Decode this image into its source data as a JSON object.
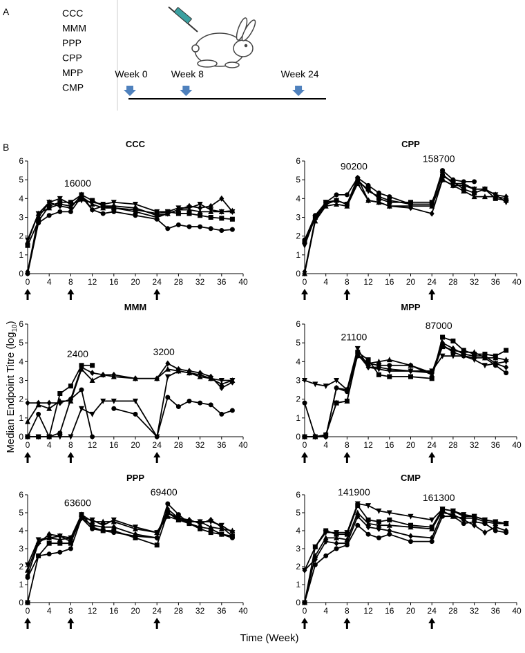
{
  "panel_labels": [
    "A",
    "B"
  ],
  "schedule": {
    "groups": [
      "CCC",
      "MMM",
      "PPP",
      "CPP",
      "MPP",
      "CMP"
    ],
    "weeks": [
      {
        "label": "Week 0",
        "week": 0
      },
      {
        "label": "Week 8",
        "week": 8
      },
      {
        "label": "Week 24",
        "week": 24
      }
    ],
    "arrow_color": "#4f81bd"
  },
  "axis_labels": {
    "y": [
      "Median Endpoint Titre (log",
      "10",
      ")"
    ],
    "x": "Time (Week)"
  },
  "chart_data": [
    {
      "type": "line",
      "title": "CCC",
      "x": [
        0,
        2,
        4,
        6,
        8,
        10,
        12,
        14,
        16,
        20,
        24,
        26,
        28,
        30,
        32,
        34,
        36,
        38
      ],
      "series": [
        {
          "marker": "circle",
          "color": "#000",
          "values": [
            0,
            2.7,
            3.1,
            3.3,
            3.3,
            4.1,
            3.4,
            3.2,
            3.3,
            3.1,
            2.9,
            2.4,
            2.6,
            2.5,
            2.5,
            2.4,
            2.3,
            2.35
          ]
        },
        {
          "marker": "square",
          "color": "#000",
          "values": [
            1.5,
            2.8,
            3.6,
            3.8,
            3.8,
            4.2,
            3.9,
            3.6,
            3.5,
            3.4,
            3.2,
            3.3,
            3.2,
            3.2,
            3.1,
            3.0,
            2.95,
            2.9
          ]
        },
        {
          "marker": "triangle-up",
          "color": "#000",
          "values": [
            1.7,
            3.2,
            3.5,
            3.7,
            3.6,
            4.1,
            3.7,
            3.5,
            3.5,
            3.3,
            3.0,
            3.2,
            3.4,
            3.4,
            3.3,
            3.3,
            3.3,
            3.35
          ]
        },
        {
          "marker": "triangle-down",
          "color": "#000",
          "values": [
            1.8,
            3.2,
            3.8,
            4.0,
            3.7,
            3.9,
            3.8,
            3.7,
            3.8,
            3.7,
            3.3,
            3.3,
            3.5,
            3.5,
            3.7,
            3.4,
            3.3,
            3.3
          ]
        },
        {
          "marker": "diamond",
          "color": "#000",
          "values": [
            0.1,
            3.0,
            3.8,
            3.6,
            3.5,
            4.2,
            3.4,
            3.6,
            3.6,
            3.5,
            3.1,
            3.2,
            3.4,
            3.6,
            3.5,
            3.6,
            4.0,
            3.3
          ]
        }
      ],
      "annotations": [
        {
          "text": "16000",
          "x": 8
        }
      ],
      "dose_weeks": [
        0,
        8,
        24
      ],
      "xlim": [
        0,
        40
      ],
      "xticks": [
        0,
        4,
        8,
        12,
        16,
        20,
        24,
        28,
        32,
        36,
        40
      ],
      "ylim": [
        0,
        6
      ],
      "yticks": [
        0,
        1,
        2,
        3,
        4,
        5,
        6
      ]
    },
    {
      "type": "line",
      "title": "CPP",
      "x": [
        0,
        2,
        4,
        6,
        8,
        10,
        12,
        14,
        16,
        20,
        24,
        26,
        28,
        30,
        32,
        34,
        36,
        38
      ],
      "series": [
        {
          "marker": "circle",
          "color": "#000",
          "values": [
            1.8,
            3.1,
            3.8,
            4.2,
            4.2,
            5.1,
            4.7,
            4.3,
            4.1,
            3.7,
            3.7,
            5.5,
            5.0,
            4.9,
            4.9,
            null,
            null,
            null
          ]
        },
        {
          "marker": "square",
          "color": "#000",
          "values": [
            1.7,
            3.0,
            3.8,
            3.9,
            3.7,
            4.9,
            4.5,
            4.0,
            3.8,
            3.8,
            3.8,
            5.2,
            4.9,
            4.5,
            4.3,
            4.5,
            4.0,
            3.9
          ]
        },
        {
          "marker": "triangle-up",
          "color": "#000",
          "values": [
            0,
            2.8,
            3.6,
            3.7,
            3.6,
            4.8,
            3.9,
            3.8,
            3.6,
            3.6,
            3.6,
            5.0,
            4.7,
            4.4,
            4.1,
            4.1,
            4.1,
            4.0
          ]
        },
        {
          "marker": "triangle-down",
          "color": "#000",
          "values": [
            1.5,
            3.0,
            3.8,
            3.9,
            3.7,
            5.0,
            4.4,
            4.1,
            3.9,
            3.7,
            3.7,
            5.3,
            4.8,
            4.8,
            4.5,
            4.5,
            4.2,
            3.8
          ]
        },
        {
          "marker": "diamond",
          "color": "#000",
          "values": [
            0.1,
            2.9,
            3.7,
            3.9,
            3.7,
            5.1,
            3.9,
            3.8,
            3.6,
            3.5,
            3.2,
            5.0,
            4.7,
            4.7,
            4.5,
            4.5,
            4.2,
            4.1
          ]
        }
      ],
      "annotations": [
        {
          "text": "90200",
          "x": 8
        },
        {
          "text": "158700",
          "x": 24
        }
      ],
      "dose_weeks": [
        0,
        8,
        24
      ],
      "xlim": [
        0,
        40
      ],
      "xticks": [
        0,
        4,
        8,
        12,
        16,
        20,
        24,
        28,
        32,
        36,
        40
      ],
      "ylim": [
        0,
        6
      ],
      "yticks": [
        0,
        1,
        2,
        3,
        4,
        5,
        6
      ]
    },
    {
      "type": "line",
      "title": "MMM",
      "x": [
        0,
        2,
        4,
        6,
        8,
        10,
        12,
        14,
        16,
        20,
        24,
        26,
        28,
        30,
        32,
        34,
        36,
        38
      ],
      "series": [
        {
          "marker": "circle",
          "color": "#000",
          "values": [
            0,
            1.2,
            0,
            0.2,
            2.0,
            2.5,
            0,
            null,
            1.5,
            1.2,
            0,
            2.1,
            1.6,
            1.9,
            1.8,
            1.7,
            1.2,
            1.4
          ]
        },
        {
          "marker": "square",
          "color": "#000",
          "values": [
            0,
            0,
            0,
            2.3,
            2.7,
            3.8,
            3.8,
            null,
            null,
            null,
            null,
            null,
            null,
            null,
            null,
            null,
            null,
            null
          ]
        },
        {
          "marker": "triangle-up",
          "color": "#000",
          "values": [
            0.8,
            1.7,
            1.5,
            1.9,
            1.9,
            3.6,
            3.0,
            3.3,
            3.2,
            3.1,
            3.1,
            3.6,
            3.5,
            3.4,
            3.2,
            3.1,
            2.8,
            3.0
          ]
        },
        {
          "marker": "triangle-down",
          "color": "#000",
          "values": [
            0,
            0,
            0,
            0,
            0,
            1.5,
            1.2,
            1.9,
            1.9,
            1.9,
            0,
            3.2,
            3.5,
            3.4,
            3.3,
            3.1,
            3.0,
            3.0
          ]
        },
        {
          "marker": "diamond",
          "color": "#000",
          "values": [
            1.8,
            1.8,
            1.8,
            1.8,
            2.0,
            3.7,
            3.4,
            3.3,
            3.3,
            3.1,
            3.1,
            3.9,
            3.6,
            3.5,
            3.4,
            3.2,
            2.6,
            2.9
          ]
        }
      ],
      "annotations": [
        {
          "text": "2400",
          "x": 8
        },
        {
          "text": "3200",
          "x": 24
        }
      ],
      "dose_weeks": [
        0,
        8,
        24
      ],
      "xlim": [
        0,
        40
      ],
      "xticks": [
        0,
        4,
        8,
        12,
        16,
        20,
        24,
        28,
        32,
        36,
        40
      ],
      "ylim": [
        0,
        6
      ],
      "yticks": [
        0,
        1,
        2,
        3,
        4,
        5,
        6
      ]
    },
    {
      "type": "line",
      "title": "MPP",
      "x": [
        0,
        2,
        4,
        6,
        8,
        10,
        12,
        14,
        16,
        20,
        24,
        26,
        28,
        30,
        32,
        34,
        36,
        38
      ],
      "series": [
        {
          "marker": "circle",
          "color": "#000",
          "values": [
            1.8,
            0,
            0,
            2.6,
            2.4,
            4.3,
            3.9,
            3.8,
            3.8,
            3.8,
            3.4,
            4.9,
            4.5,
            4.3,
            4.2,
            4.2,
            3.8,
            3.4
          ]
        },
        {
          "marker": "square",
          "color": "#000",
          "values": [
            0,
            0,
            0.1,
            1.8,
            1.9,
            4.5,
            4.1,
            3.3,
            3.2,
            3.2,
            3.1,
            5.3,
            5.1,
            4.6,
            4.4,
            4.4,
            4.3,
            4.6
          ]
        },
        {
          "marker": "triangle-up",
          "color": "#000",
          "values": [
            0,
            0,
            0.1,
            1.8,
            1.9,
            4.4,
            3.9,
            4.0,
            4.1,
            3.8,
            3.3,
            4.8,
            4.6,
            4.5,
            4.5,
            4.2,
            4.2,
            4.1
          ]
        },
        {
          "marker": "triangle-down",
          "color": "#000",
          "values": [
            3.0,
            2.8,
            2.7,
            3.0,
            2.5,
            4.7,
            3.7,
            3.6,
            3.5,
            3.5,
            3.5,
            4.3,
            4.3,
            4.3,
            4.1,
            3.8,
            3.9,
            4.0
          ]
        },
        {
          "marker": "diamond",
          "color": "#000",
          "values": [
            0,
            0,
            0,
            2.6,
            2.5,
            4.4,
            3.7,
            3.7,
            3.6,
            3.5,
            3.4,
            5.0,
            4.7,
            4.4,
            4.3,
            4.3,
            3.9,
            3.7
          ]
        }
      ],
      "annotations": [
        {
          "text": "21100",
          "x": 8
        },
        {
          "text": "87000",
          "x": 24
        }
      ],
      "dose_weeks": [
        0,
        8,
        24
      ],
      "xlim": [
        0,
        40
      ],
      "xticks": [
        0,
        4,
        8,
        12,
        16,
        20,
        24,
        28,
        32,
        36,
        40
      ],
      "ylim": [
        0,
        6
      ],
      "yticks": [
        0,
        1,
        2,
        3,
        4,
        5,
        6
      ]
    },
    {
      "type": "line",
      "title": "PPP",
      "x": [
        0,
        2,
        4,
        6,
        8,
        10,
        12,
        14,
        16,
        20,
        24,
        26,
        28,
        30,
        32,
        34,
        36,
        38
      ],
      "series": [
        {
          "marker": "circle",
          "color": "#000",
          "values": [
            1.4,
            2.6,
            2.7,
            2.8,
            3.0,
            4.7,
            4.1,
            4.0,
            3.9,
            3.7,
            3.6,
            5.5,
            4.9,
            4.4,
            4.2,
            4.1,
            3.8,
            3.6
          ]
        },
        {
          "marker": "square",
          "color": "#000",
          "values": [
            0,
            2.6,
            3.3,
            3.3,
            3.3,
            4.9,
            4.2,
            4.0,
            4.0,
            3.6,
            3.2,
            5.0,
            4.6,
            4.4,
            4.1,
            3.9,
            3.8,
            3.7
          ]
        },
        {
          "marker": "triangle-up",
          "color": "#000",
          "values": [
            1.8,
            3.4,
            3.6,
            3.5,
            3.6,
            4.9,
            4.5,
            4.5,
            4.5,
            4.1,
            3.9,
            4.8,
            4.6,
            4.5,
            4.5,
            4.2,
            4.1,
            4.0
          ]
        },
        {
          "marker": "triangle-down",
          "color": "#000",
          "values": [
            2.1,
            3.5,
            3.6,
            3.7,
            3.6,
            4.7,
            4.6,
            4.3,
            4.6,
            4.2,
            3.9,
            5.0,
            4.7,
            4.5,
            4.5,
            4.5,
            4.3,
            3.9
          ]
        },
        {
          "marker": "diamond",
          "color": "#000",
          "values": [
            1.5,
            3.3,
            3.8,
            3.7,
            3.4,
            4.7,
            4.3,
            4.2,
            4.2,
            3.8,
            3.6,
            5.2,
            4.7,
            4.6,
            4.4,
            4.6,
            4.2,
            3.7
          ]
        }
      ],
      "annotations": [
        {
          "text": "63600",
          "x": 8
        },
        {
          "text": "69400",
          "x": 24
        }
      ],
      "dose_weeks": [
        0,
        8,
        24
      ],
      "xlim": [
        0,
        40
      ],
      "xticks": [
        0,
        4,
        8,
        12,
        16,
        20,
        24,
        28,
        32,
        36,
        40
      ],
      "ylim": [
        0,
        6
      ],
      "yticks": [
        0,
        1,
        2,
        3,
        4,
        5,
        6
      ]
    },
    {
      "type": "line",
      "title": "CMP",
      "x": [
        0,
        2,
        4,
        6,
        8,
        10,
        12,
        14,
        16,
        20,
        24,
        26,
        28,
        30,
        32,
        34,
        36,
        38
      ],
      "series": [
        {
          "marker": "circle",
          "color": "#000",
          "values": [
            0,
            2.1,
            2.6,
            3.0,
            3.2,
            4.3,
            3.8,
            3.6,
            3.8,
            3.4,
            3.4,
            4.8,
            4.8,
            4.4,
            4.5,
            4.4,
            4.0,
            3.9
          ]
        },
        {
          "marker": "square",
          "color": "#000",
          "values": [
            0,
            3.1,
            4.0,
            3.8,
            3.8,
            5.4,
            4.6,
            4.5,
            4.6,
            4.3,
            4.2,
            5.2,
            5.1,
            4.8,
            4.8,
            4.6,
            4.5,
            4.4
          ]
        },
        {
          "marker": "triangle-up",
          "color": "#000",
          "values": [
            0,
            2.6,
            3.6,
            3.6,
            3.5,
            5.0,
            4.4,
            4.3,
            4.3,
            4.2,
            4.1,
            5.1,
            4.8,
            4.7,
            4.7,
            4.5,
            4.4,
            4.4
          ]
        },
        {
          "marker": "triangle-down",
          "color": "#000",
          "values": [
            1.8,
            3.1,
            3.9,
            3.9,
            3.9,
            5.5,
            5.4,
            5.1,
            5.0,
            4.8,
            4.6,
            5.2,
            5.1,
            4.9,
            4.8,
            4.6,
            4.5,
            4.4
          ]
        },
        {
          "marker": "diamond",
          "color": "#000",
          "values": [
            1.8,
            2.4,
            3.4,
            3.3,
            3.3,
            4.8,
            4.2,
            4.1,
            4.0,
            3.7,
            3.6,
            5.0,
            4.9,
            4.6,
            4.3,
            3.9,
            4.2,
            4.0
          ]
        }
      ],
      "annotations": [
        {
          "text": "141900",
          "x": 8
        },
        {
          "text": "161300",
          "x": 24
        }
      ],
      "dose_weeks": [
        0,
        8,
        24
      ],
      "xlim": [
        0,
        40
      ],
      "xticks": [
        0,
        4,
        8,
        12,
        16,
        20,
        24,
        28,
        32,
        36,
        40
      ],
      "ylim": [
        0,
        6
      ],
      "yticks": [
        0,
        1,
        2,
        3,
        4,
        5,
        6
      ]
    }
  ]
}
